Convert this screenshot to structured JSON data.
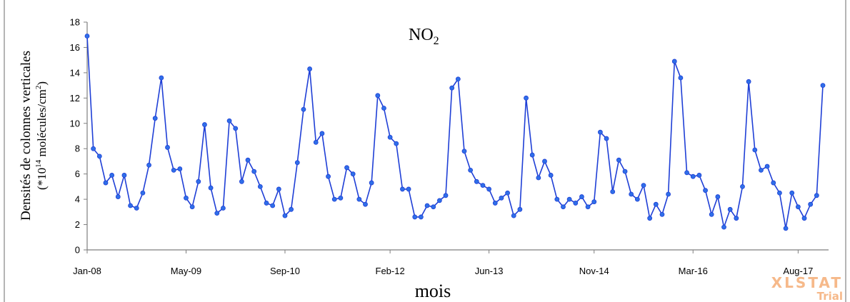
{
  "chart_data": {
    "type": "line",
    "title": "NO",
    "title_subscript": "2",
    "xlabel": "mois",
    "ylabel_line1": "Densités de colonnes verticales",
    "ylabel_line2_a": "(*10",
    "ylabel_line2_sup1": "14",
    "ylabel_line2_b": " molécules/cm",
    "ylabel_line2_sup2": "2",
    "ylabel_line2_c": ")",
    "ylim": [
      0,
      18
    ],
    "yticks": [
      0,
      2,
      4,
      6,
      8,
      10,
      12,
      14,
      16,
      18
    ],
    "xticks": [
      {
        "index": 0,
        "label": "Jan-08"
      },
      {
        "index": 16,
        "label": "May-09"
      },
      {
        "index": 32,
        "label": "Sep-10"
      },
      {
        "index": 49,
        "label": "Feb-12"
      },
      {
        "index": 65,
        "label": "Jun-13"
      },
      {
        "index": 82,
        "label": "Nov-14"
      },
      {
        "index": 98,
        "label": "Mar-16"
      },
      {
        "index": 115,
        "label": "Aug-17"
      }
    ],
    "grid": false,
    "line_color": "#1f3fd6",
    "marker_color": "#2f6fe8",
    "values": [
      16.9,
      8.0,
      7.4,
      5.3,
      5.9,
      4.2,
      5.9,
      3.5,
      3.3,
      4.5,
      6.7,
      10.4,
      13.6,
      8.1,
      6.3,
      6.4,
      4.1,
      3.4,
      5.4,
      9.9,
      4.9,
      2.9,
      3.3,
      10.2,
      9.6,
      5.4,
      7.1,
      6.2,
      5.0,
      3.7,
      3.5,
      4.8,
      2.7,
      3.2,
      6.9,
      11.1,
      14.3,
      8.5,
      9.2,
      5.8,
      4.0,
      4.1,
      6.5,
      6.0,
      4.0,
      3.6,
      5.3,
      12.2,
      11.2,
      8.9,
      8.4,
      4.8,
      4.8,
      2.6,
      2.6,
      3.5,
      3.4,
      3.9,
      4.3,
      12.8,
      13.5,
      7.8,
      6.3,
      5.4,
      5.1,
      4.8,
      3.7,
      4.1,
      4.5,
      2.7,
      3.2,
      12.0,
      7.5,
      5.7,
      7.0,
      5.9,
      4.0,
      3.4,
      4.0,
      3.7,
      4.2,
      3.4,
      3.8,
      9.3,
      8.8,
      4.6,
      7.1,
      6.2,
      4.4,
      4.0,
      5.1,
      2.5,
      3.6,
      2.8,
      4.4,
      14.9,
      13.6,
      6.1,
      5.8,
      5.9,
      4.7,
      2.8,
      4.2,
      1.8,
      3.2,
      2.5,
      5.0,
      13.3,
      7.9,
      6.3,
      6.6,
      5.3,
      4.5,
      1.7,
      4.5,
      3.4,
      2.5,
      3.6,
      4.3,
      13.0
    ]
  },
  "watermark": {
    "line1": "XLSTAT",
    "line2": "Trial",
    "color": "#f6b98a"
  }
}
